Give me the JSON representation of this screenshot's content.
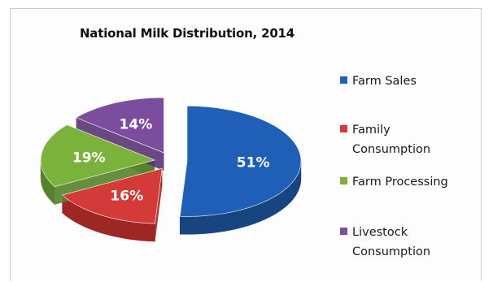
{
  "chart_data": {
    "type": "pie",
    "title": "National Milk Distribution, 2014",
    "slices": [
      {
        "label": "Farm Sales",
        "value": 51,
        "display": "51%",
        "color": "#1f5fb8",
        "side": "#17457f"
      },
      {
        "label": "Family\nConsumption",
        "value": 16,
        "display": "16%",
        "color": "#d43a37",
        "side": "#9e2623"
      },
      {
        "label": "Farm Processing",
        "value": 19,
        "display": "19%",
        "color": "#7ab23c",
        "side": "#55822a"
      },
      {
        "label": "Livestock\nConsumption",
        "value": 14,
        "display": "14%",
        "color": "#7c4c9e",
        "side": "#5a3574"
      }
    ],
    "legend_position": "right",
    "exploded": true,
    "three_d": true
  }
}
